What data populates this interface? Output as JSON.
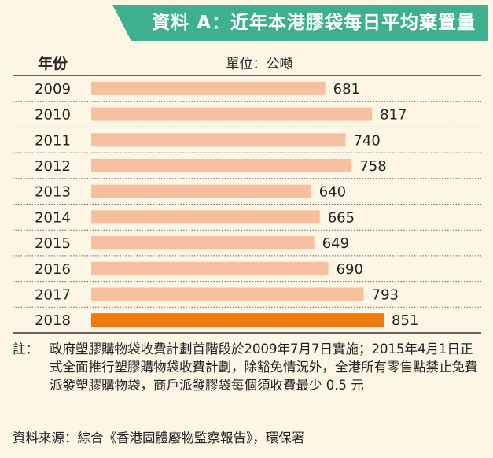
{
  "title": "資料 A：近年本港膠袋每日平均棄置量",
  "chart_data": {
    "type": "bar",
    "orientation": "horizontal",
    "year_header": "年份",
    "unit_header": "單位：公噸",
    "categories": [
      "2009",
      "2010",
      "2011",
      "2012",
      "2013",
      "2014",
      "2015",
      "2016",
      "2017",
      "2018"
    ],
    "values": [
      681,
      817,
      740,
      758,
      640,
      665,
      649,
      690,
      793,
      851
    ],
    "highlight_category": "2018",
    "xlim": [
      0,
      851
    ],
    "grid": false,
    "colors": {
      "bar": "#f6c0a0",
      "highlight": "#ee7a10",
      "title_bg": "#3eb08e"
    }
  },
  "note": {
    "label": "註：",
    "text": "政府塑膠購物袋收費計劃首階段於2009年7月7日實施；2015年4月1日正式全面推行塑膠購物袋收費計劃，除豁免情況外，全港所有零售點禁止免費派發塑膠購物袋，商戶派發膠袋每個須收費最少 0.5 元"
  },
  "source": "資料來源：綜合《香港固體廢物監察報告》，環保署"
}
